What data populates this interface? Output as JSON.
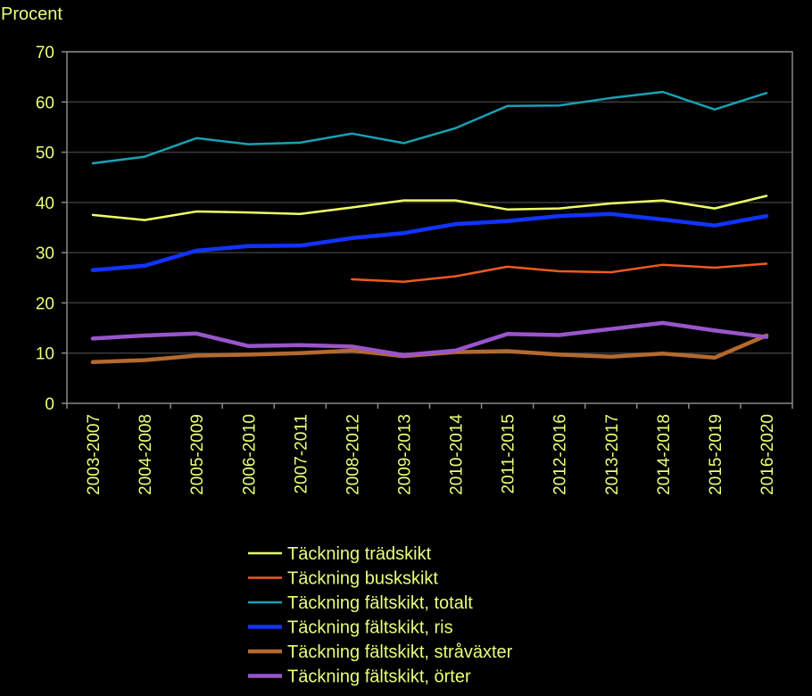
{
  "chart_data": {
    "type": "line",
    "title": "",
    "xlabel": "",
    "ylabel": "Procent",
    "ylim": [
      0,
      70
    ],
    "yticks": [
      0,
      10,
      20,
      30,
      40,
      50,
      60,
      70
    ],
    "grid": true,
    "legend_position": "bottom",
    "categories": [
      "2003-2007",
      "2004-2008",
      "2005-2009",
      "2006-2010",
      "2007-2011",
      "2008-2012",
      "2009-2013",
      "2010-2014",
      "2011-2015",
      "2012-2016",
      "2013-2017",
      "2014-2018",
      "2015-2019",
      "2016-2020"
    ],
    "series": [
      {
        "name": "Täckning trädskikt",
        "color": "#eeff66",
        "width": 2.5,
        "values": [
          37.5,
          36.5,
          38.2,
          38.0,
          37.7,
          39.0,
          40.4,
          40.4,
          38.6,
          38.8,
          39.8,
          40.4,
          38.8,
          41.3
        ]
      },
      {
        "name": "Täckning buskskikt",
        "color": "#f05a1e",
        "width": 2.5,
        "values": [
          null,
          null,
          null,
          null,
          null,
          24.7,
          24.2,
          25.3,
          27.2,
          26.3,
          26.1,
          27.6,
          27.0,
          27.8
        ]
      },
      {
        "name": "Täckning fältskikt, totalt",
        "color": "#1aa0b4",
        "width": 2.5,
        "values": [
          47.8,
          49.1,
          52.8,
          51.6,
          51.9,
          53.7,
          51.8,
          54.8,
          59.2,
          59.3,
          60.8,
          62.0,
          58.5,
          61.8
        ]
      },
      {
        "name": "Täckning fältskikt, ris",
        "color": "#1133ff",
        "width": 4.5,
        "values": [
          26.5,
          27.4,
          30.4,
          31.3,
          31.4,
          32.9,
          33.9,
          35.7,
          36.3,
          37.3,
          37.7,
          36.6,
          35.4,
          37.3
        ]
      },
      {
        "name": "Täckning fältskikt, stråväxter",
        "color": "#b36a2e",
        "width": 4.5,
        "values": [
          8.2,
          8.6,
          9.5,
          9.7,
          10.0,
          10.5,
          9.4,
          10.2,
          10.4,
          9.7,
          9.3,
          9.9,
          9.1,
          13.5
        ]
      },
      {
        "name": "Täckning fältskikt, örter",
        "color": "#9955cc",
        "width": 4.5,
        "values": [
          12.9,
          13.5,
          13.9,
          11.4,
          11.6,
          11.3,
          9.6,
          10.5,
          13.8,
          13.6,
          14.8,
          16.0,
          14.5,
          13.2
        ]
      }
    ]
  }
}
